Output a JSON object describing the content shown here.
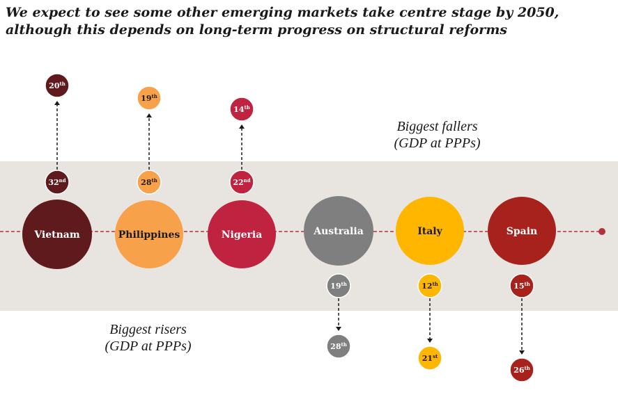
{
  "title": {
    "line1": "We expect to see some other emerging markets take centre stage by 2050,",
    "line2": "although this depends on long-term progress on structural reforms"
  },
  "fallers_caption": {
    "line1": "Biggest fallers",
    "line2": "(GDP at PPPs)"
  },
  "risers_caption": {
    "line1": "Biggest risers",
    "line2": "(GDP at PPPs)"
  },
  "countries": [
    {
      "name": "Vietnam",
      "color": "#5e1a1c",
      "text_color": "#ffffff",
      "from_rank": "32",
      "from_suffix": "nd",
      "to_rank": "20",
      "to_suffix": "th",
      "direction": "up",
      "rank_text_color": "#ffffff"
    },
    {
      "name": "Philippines",
      "color": "#f7a24b",
      "text_color": "#1a1a1a",
      "from_rank": "28",
      "from_suffix": "th",
      "to_rank": "19",
      "to_suffix": "th",
      "direction": "up",
      "rank_text_color": "#1a1a1a"
    },
    {
      "name": "Nigeria",
      "color": "#c0233f",
      "text_color": "#ffffff",
      "from_rank": "22",
      "from_suffix": "nd",
      "to_rank": "14",
      "to_suffix": "th",
      "direction": "up",
      "rank_text_color": "#ffffff"
    },
    {
      "name": "Australia",
      "color": "#7f7f7f",
      "text_color": "#ffffff",
      "from_rank": "19",
      "from_suffix": "th",
      "to_rank": "28",
      "to_suffix": "th",
      "direction": "down",
      "rank_text_color": "#ffffff"
    },
    {
      "name": "Italy",
      "color": "#ffb600",
      "text_color": "#1a1a1a",
      "from_rank": "12",
      "from_suffix": "th",
      "to_rank": "21",
      "to_suffix": "st",
      "direction": "down",
      "rank_text_color": "#1a1a1a"
    },
    {
      "name": "Spain",
      "color": "#a8221d",
      "text_color": "#ffffff",
      "from_rank": "15",
      "from_suffix": "th",
      "to_rank": "26",
      "to_suffix": "th",
      "direction": "down",
      "rank_text_color": "#ffffff"
    }
  ],
  "timeline_color": "#b5303a"
}
